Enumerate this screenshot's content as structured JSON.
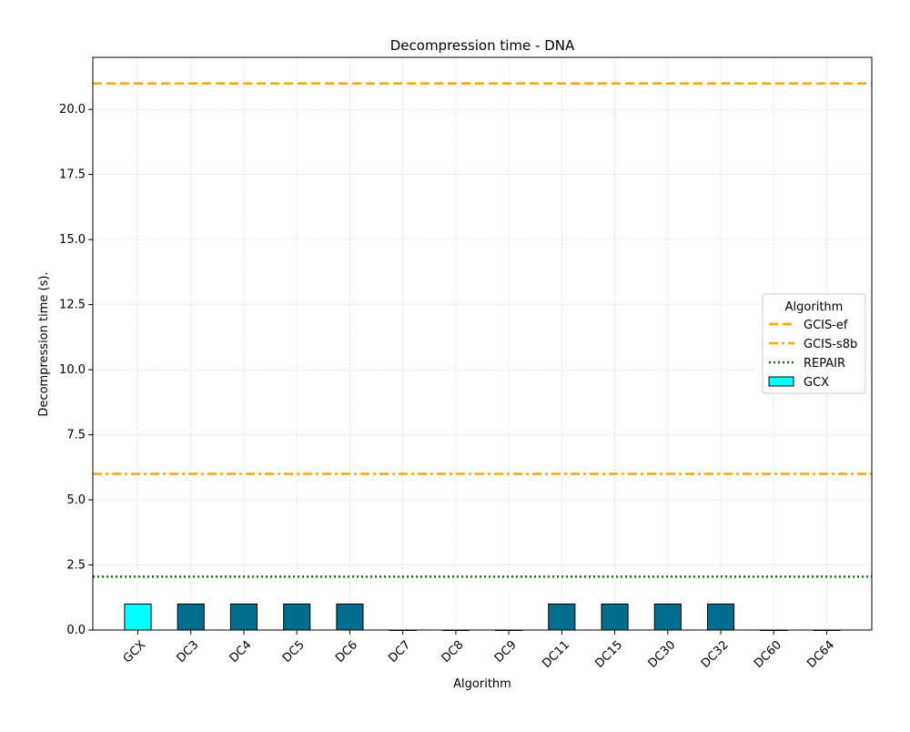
{
  "chart_data": {
    "type": "bar",
    "title": "Decompression time -  DNA",
    "xlabel": "Algorithm",
    "ylabel": "Decompression time (s).",
    "ylim": [
      0,
      22
    ],
    "yticks": [
      "0.0",
      "2.5",
      "5.0",
      "7.5",
      "10.0",
      "12.5",
      "15.0",
      "17.5",
      "20.0"
    ],
    "grid": true,
    "categories": [
      "GCX",
      "DC3",
      "DC4",
      "DC5",
      "DC6",
      "DC7",
      "DC8",
      "DC9",
      "DC11",
      "DC15",
      "DC30",
      "DC32",
      "DC60",
      "DC64"
    ],
    "values": [
      1.0,
      1.0,
      1.0,
      1.0,
      1.0,
      0.0,
      0.0,
      0.0,
      1.0,
      1.0,
      1.0,
      1.0,
      0.0,
      0.0
    ],
    "bar_colors": {
      "GCX": "#00ffff",
      "default": "#006e8f"
    },
    "reference_lines": [
      {
        "name": "GCIS-ef",
        "value": 21.0,
        "color": "#ffa500",
        "style": "dashed"
      },
      {
        "name": "GCIS-s8b",
        "value": 6.0,
        "color": "#ffa500",
        "style": "dashdot"
      },
      {
        "name": "REPAIR",
        "value": 2.05,
        "color": "#008000",
        "style": "dotted"
      }
    ],
    "legend": {
      "title": "Algorithm",
      "placement": "center-right",
      "bar_entry": "GCX"
    }
  }
}
